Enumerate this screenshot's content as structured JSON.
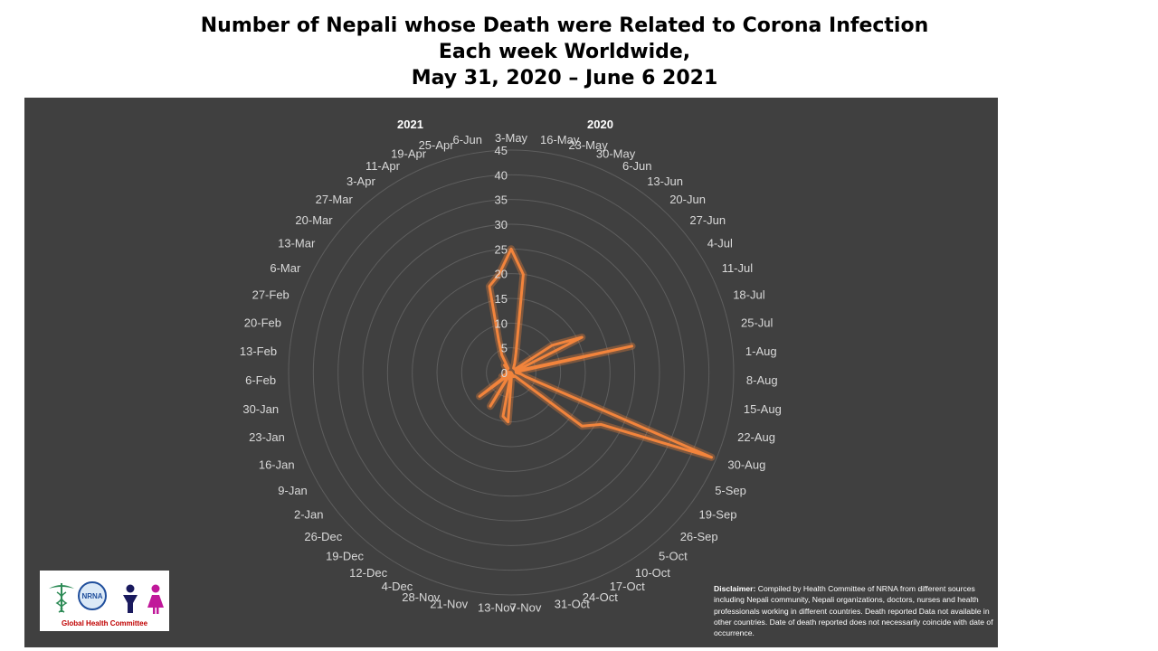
{
  "title": {
    "line1": "Number of Nepali whose Death were Related to Corona Infection",
    "line2": "Each week Worldwide,",
    "line3": "May 31, 2020 – June 6 2021"
  },
  "year_labels": {
    "left": "2021",
    "right": "2020"
  },
  "disclaimer": {
    "label": "Disclaimer:",
    "text": "Compiled by Health Committee of NRNA from different sources including Nepali community, Nepali organizations, doctors, nurses and health professionals working in different countries. Death reported Data not available in other countries. Date of death reported does not necessarily coincide with date of occurrence."
  },
  "logo": {
    "text": "NRNA",
    "caption": "Global Health Committee"
  },
  "colors": {
    "background": "#404040",
    "series": "#f2843c",
    "grid": "#5e5e5e",
    "text": "#d9d9d9"
  },
  "chart_data": {
    "type": "radar",
    "categories": [
      "3-May",
      "16-May",
      "23-May",
      "30-May",
      "6-Jun",
      "13-Jun",
      "20-Jun",
      "27-Jun",
      "4-Jul",
      "11-Jul",
      "18-Jul",
      "25-Jul",
      "1-Aug",
      "8-Aug",
      "15-Aug",
      "22-Aug",
      "30-Aug",
      "5-Sep",
      "19-Sep",
      "26-Sep",
      "5-Oct",
      "10-Oct",
      "17-Oct",
      "24-Oct",
      "31-Oct",
      "7-Nov",
      "13-Nov",
      "21-Nov",
      "28-Nov",
      "4-Dec",
      "12-Dec",
      "19-Dec",
      "26-Dec",
      "2-Jan",
      "9-Jan",
      "16-Jan",
      "23-Jan",
      "30-Jan",
      "6-Feb",
      "13-Feb",
      "20-Feb",
      "27-Feb",
      "6-Mar",
      "13-Mar",
      "20-Mar",
      "27-Mar",
      "3-Apr",
      "11-Apr",
      "19-Apr",
      "25-Apr",
      "6-Jun"
    ],
    "values": [
      25,
      20,
      4,
      2,
      1,
      1,
      1,
      1,
      10,
      16,
      1,
      25,
      1,
      1,
      2,
      3,
      44,
      21,
      18,
      1,
      1,
      1,
      0,
      0,
      0,
      1,
      10,
      9,
      0,
      0,
      8,
      1,
      1,
      8,
      1,
      2,
      1,
      1,
      0,
      0,
      1,
      1,
      1,
      1,
      1,
      2,
      1,
      4,
      7,
      18,
      20
    ],
    "rmax": 45,
    "ticks": [
      0,
      5,
      10,
      15,
      20,
      25,
      30,
      35,
      40,
      45
    ],
    "grid": true,
    "legend": "none"
  }
}
